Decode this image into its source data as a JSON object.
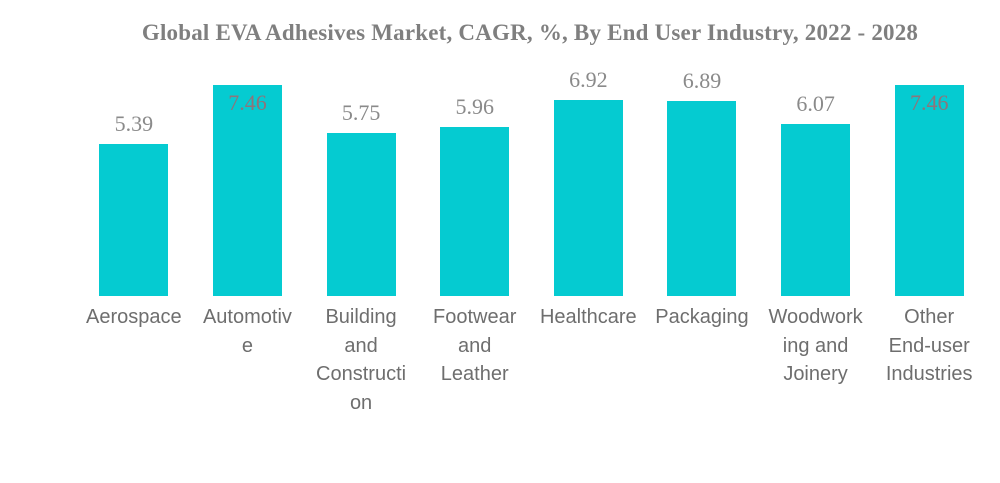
{
  "chart_data": {
    "type": "bar",
    "title": "Global EVA Adhesives Market, CAGR, %, By End User Industry, 2022 - 2028",
    "categories": [
      "Aerospace",
      "Automotive",
      "Building and Construction",
      "Footwear and Leather",
      "Healthcare",
      "Packaging",
      "Woodworking and Joinery",
      "Other End-user Industries"
    ],
    "category_display": [
      "Aerospace",
      "Automotiv\ne",
      "Building\nand\nConstructi\non",
      "Footwear\nand\nLeather",
      "Healthcare",
      "Packaging",
      "Woodwork\ning and\nJoinery",
      "Other\nEnd-user\nIndustries"
    ],
    "values": [
      5.39,
      7.46,
      5.75,
      5.96,
      6.92,
      6.89,
      6.07,
      7.46
    ],
    "value_labels": [
      "5.39",
      "7.46",
      "5.75",
      "5.96",
      "6.92",
      "6.89",
      "6.07",
      "7.46"
    ],
    "label_position": [
      "above",
      "inside",
      "above",
      "above",
      "above",
      "above",
      "above",
      "inside"
    ],
    "xlabel": "",
    "ylabel": "",
    "ylim": [
      0,
      7.46
    ],
    "grid": false,
    "legend": false,
    "colors": {
      "bar": "#05cbd1",
      "title": "#7f7f7f",
      "value_label": "#8a8a8a",
      "value_label_inside": "#8d757b",
      "category_label": "#6e6e6e",
      "background": "#ffffff"
    }
  }
}
